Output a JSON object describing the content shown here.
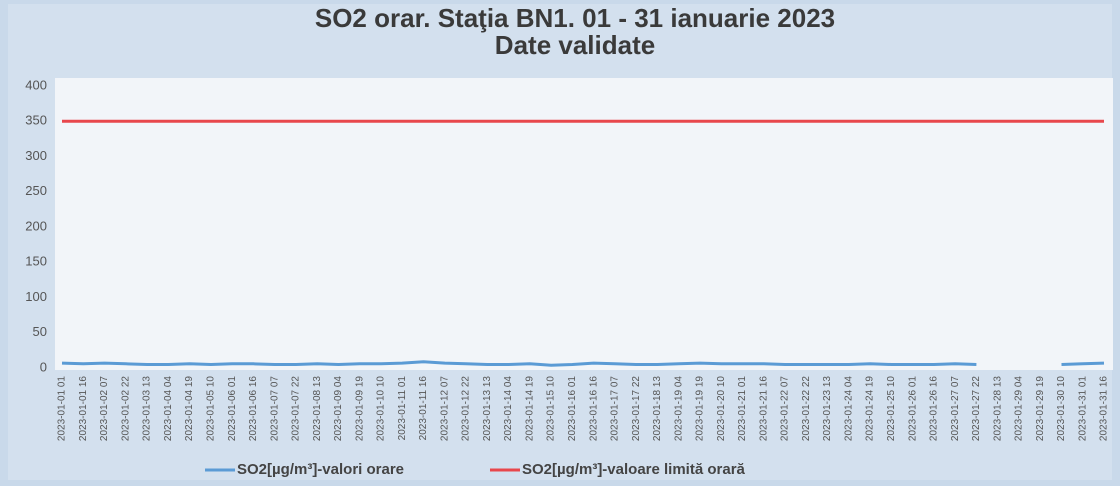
{
  "chart_data": {
    "type": "line",
    "title": "SO2 orar. Staţia BN1. 01 - 31 ianuarie 2023",
    "subtitle": "Date validate",
    "categories": [
      "2023-01-01 01",
      "2023-01-01 16",
      "2023-01-02 07",
      "2023-01-02 22",
      "2023-01-03 13",
      "2023-01-04 04",
      "2023-01-04 19",
      "2023-01-05 10",
      "2023-01-06 01",
      "2023-01-06 16",
      "2023-01-07 07",
      "2023-01-07 22",
      "2023-01-08 13",
      "2023-01-09 04",
      "2023-01-09 19",
      "2023-01-10 10",
      "2023-01-11 01",
      "2023-01-11 16",
      "2023-01-12 07",
      "2023-01-12 22",
      "2023-01-13 13",
      "2023-01-14 04",
      "2023-01-14 19",
      "2023-01-15 10",
      "2023-01-16 01",
      "2023-01-16 16",
      "2023-01-17 07",
      "2023-01-17 22",
      "2023-01-18 13",
      "2023-01-19 04",
      "2023-01-19 19",
      "2023-01-20 10",
      "2023-01-21 01",
      "2023-01-21 16",
      "2023-01-22 07",
      "2023-01-22 22",
      "2023-01-23 13",
      "2023-01-24 04",
      "2023-01-24 19",
      "2023-01-25 10",
      "2023-01-26 01",
      "2023-01-26 16",
      "2023-01-27 07",
      "2023-01-27 22",
      "2023-01-28 13",
      "2023-01-29 04",
      "2023-01-29 19",
      "2023-01-30 10",
      "2023-01-31 01",
      "2023-01-31 16"
    ],
    "series": [
      {
        "name": "SO2[µg/m³]-valori orare",
        "color": "#5b9bd5",
        "values": [
          7,
          6,
          7,
          6,
          5,
          5,
          6,
          5,
          6,
          6,
          5,
          5,
          6,
          5,
          6,
          6,
          7,
          9,
          7,
          6,
          5,
          5,
          6,
          4,
          5,
          7,
          6,
          5,
          5,
          6,
          7,
          6,
          6,
          6,
          5,
          5,
          5,
          5,
          6,
          5,
          5,
          5,
          6,
          5,
          null,
          null,
          null,
          5,
          6,
          7
        ]
      },
      {
        "name": "SO2[µg/m³]-valoare limită orară",
        "color": "#e8474c",
        "values": [
          350,
          350,
          350,
          350,
          350,
          350,
          350,
          350,
          350,
          350,
          350,
          350,
          350,
          350,
          350,
          350,
          350,
          350,
          350,
          350,
          350,
          350,
          350,
          350,
          350,
          350,
          350,
          350,
          350,
          350,
          350,
          350,
          350,
          350,
          350,
          350,
          350,
          350,
          350,
          350,
          350,
          350,
          350,
          350,
          350,
          350,
          350,
          350,
          350,
          350
        ]
      }
    ],
    "ylim": [
      0,
      400
    ],
    "yticks": [
      0,
      50,
      100,
      150,
      200,
      250,
      300,
      350,
      400
    ],
    "grid": false,
    "legend": "bottom"
  }
}
